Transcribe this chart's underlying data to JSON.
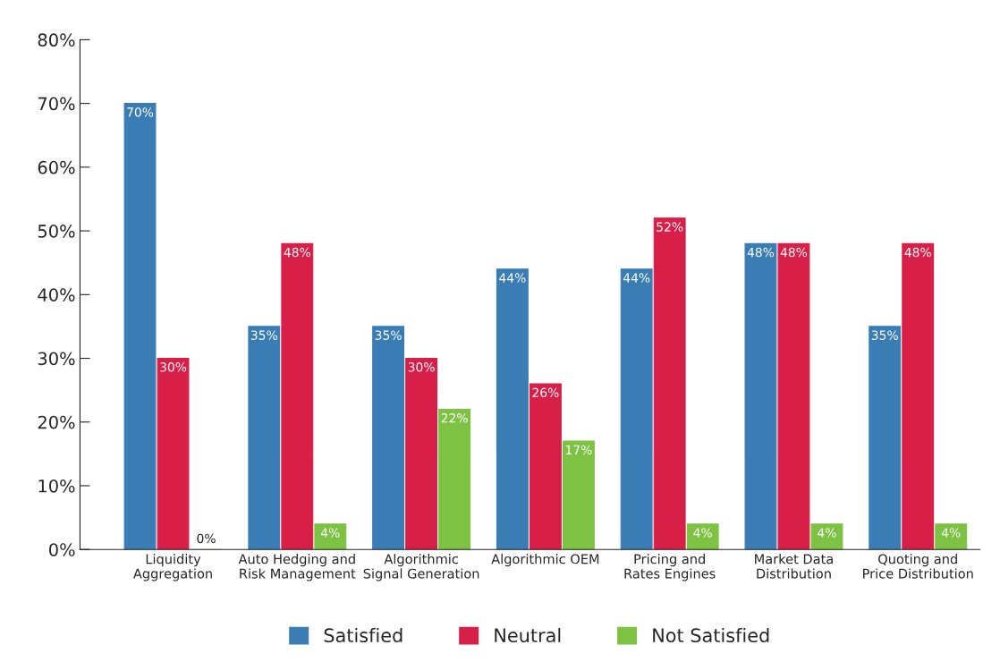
{
  "chart_data": {
    "type": "bar",
    "categories": [
      "Liquidity\nAggregation",
      "Auto Hedging and\nRisk Management",
      "Algorithmic\nSignal Generation",
      "Algorithmic OEM",
      "Pricing and\nRates Engines",
      "Market Data\nDistribution",
      "Quoting and\nPrice Distribution"
    ],
    "series": [
      {
        "name": "Satisfied",
        "color": "#3a7db5",
        "values": [
          70,
          35,
          35,
          44,
          44,
          48,
          35
        ],
        "value_labels": [
          "70%",
          "35%",
          "35%",
          "44%",
          "44%",
          "48%",
          "35%"
        ]
      },
      {
        "name": "Neutral",
        "color": "#d81f48",
        "values": [
          30,
          48,
          30,
          26,
          52,
          48,
          48
        ],
        "value_labels": [
          "30%",
          "48%",
          "30%",
          "26%",
          "52%",
          "48%",
          "48%"
        ]
      },
      {
        "name": "Not Satisfied",
        "color": "#7dc242",
        "values": [
          0,
          4,
          22,
          17,
          4,
          4,
          4
        ],
        "value_labels": [
          "0%",
          "4%",
          "22%",
          "17%",
          "4%",
          "4%",
          "4%"
        ]
      }
    ],
    "ylim": [
      0,
      80
    ],
    "yticks": [
      {
        "value": 0,
        "label": "0%"
      },
      {
        "value": 10,
        "label": "10%"
      },
      {
        "value": 20,
        "label": "20%"
      },
      {
        "value": 30,
        "label": "30%"
      },
      {
        "value": 40,
        "label": "40%"
      },
      {
        "value": 50,
        "label": "50%"
      },
      {
        "value": 60,
        "label": "60%"
      },
      {
        "value": 70,
        "label": "70%"
      },
      {
        "value": 80,
        "label": "80%"
      }
    ],
    "grid": false,
    "legend": "bottom"
  }
}
